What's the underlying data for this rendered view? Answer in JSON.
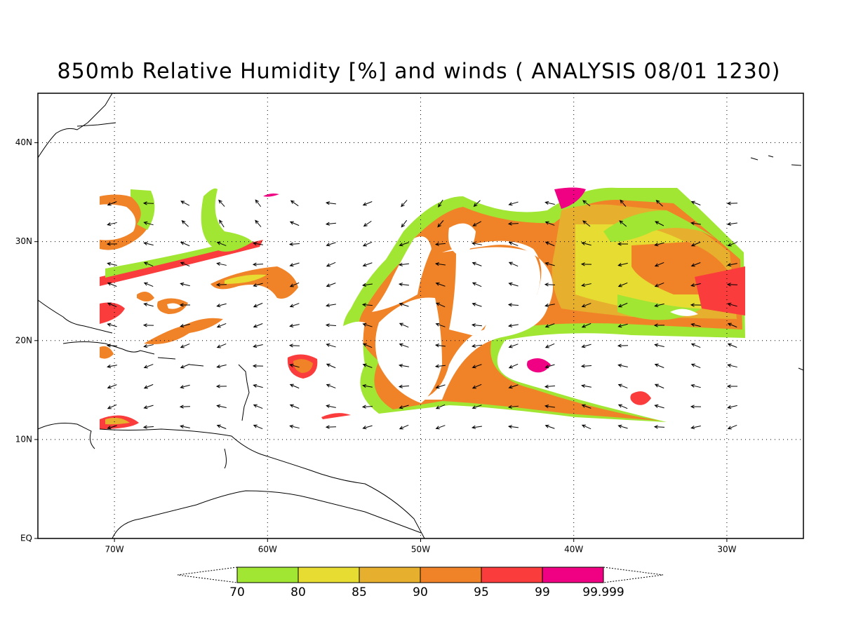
{
  "chart_data": {
    "type": "map",
    "title": "850mb Relative Humidity [%] and winds ( ANALYSIS 08/01 1230)",
    "xlim": [
      -75,
      -25
    ],
    "ylim": [
      0,
      45
    ],
    "xticks": [
      {
        "value": -70,
        "label": "70W"
      },
      {
        "value": -60,
        "label": "60W"
      },
      {
        "value": -50,
        "label": "50W"
      },
      {
        "value": -40,
        "label": "40W"
      },
      {
        "value": -30,
        "label": "30W"
      }
    ],
    "yticks": [
      {
        "value": 0,
        "label": "EQ"
      },
      {
        "value": 10,
        "label": "10N"
      },
      {
        "value": 20,
        "label": "20N"
      },
      {
        "value": 30,
        "label": "30N"
      },
      {
        "value": 40,
        "label": "40N"
      }
    ],
    "grid": true,
    "colorbar": {
      "levels": [
        70,
        80,
        85,
        90,
        95,
        99,
        99.999
      ],
      "colors": [
        "#a0e632",
        "#e6dc32",
        "#e6af2d",
        "#f08228",
        "#fa3c3c",
        "#f00082"
      ]
    }
  }
}
